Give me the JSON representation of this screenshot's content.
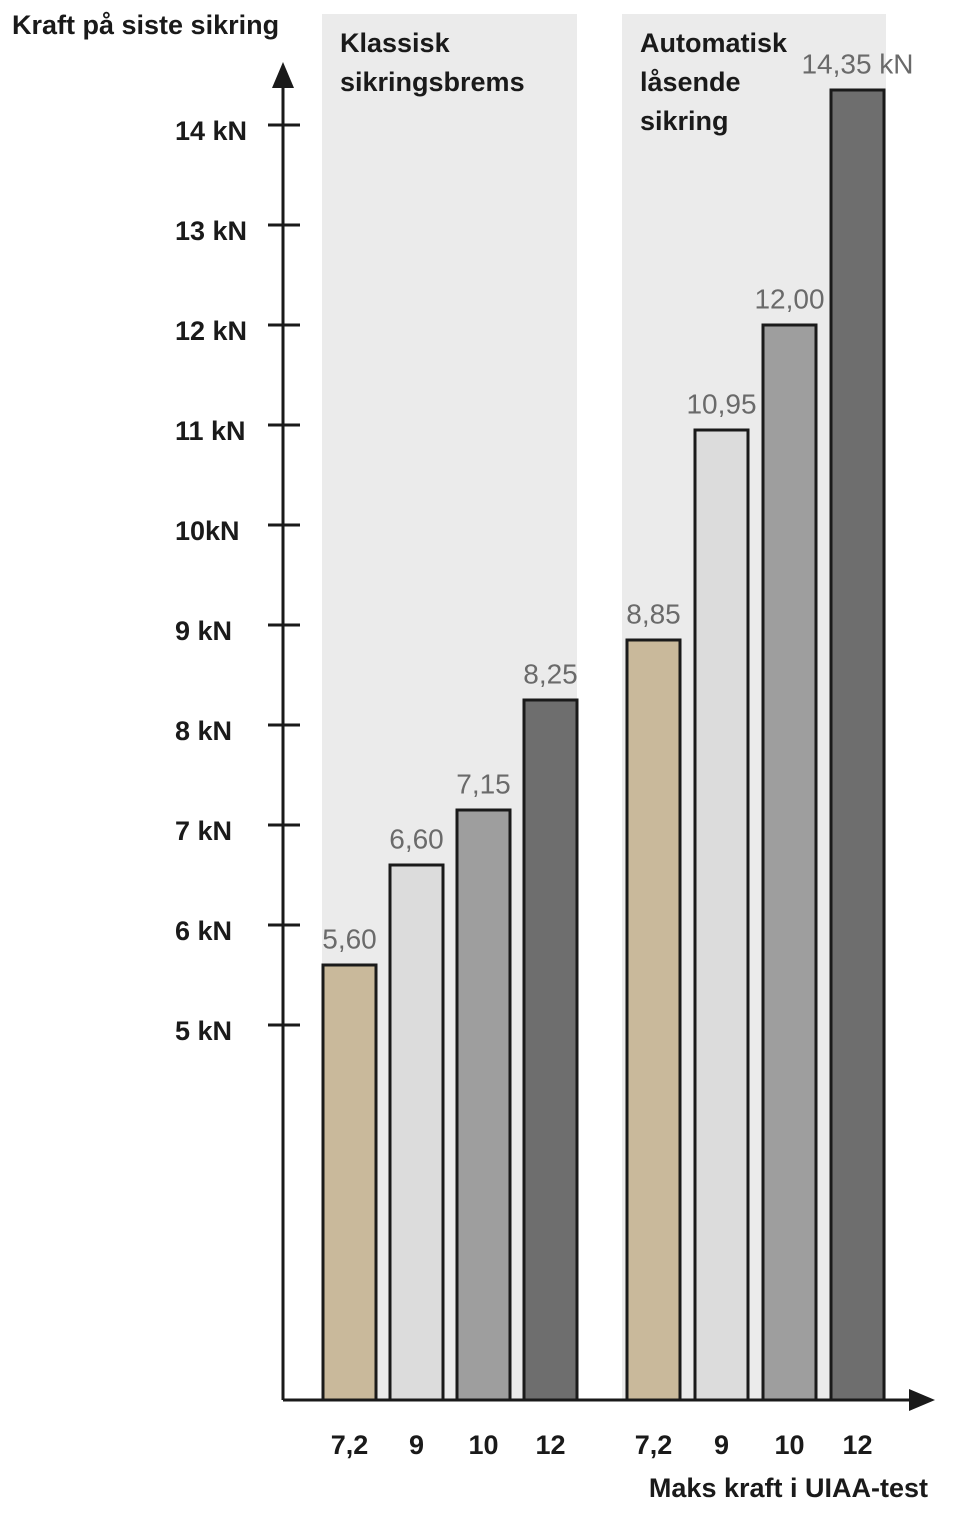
{
  "chart_data": {
    "type": "bar",
    "y_label": "Kraft på siste sikring",
    "x_label": "Maks kraft i UIAA-test",
    "colors": [
      "#c9b99b",
      "#dcdcdc",
      "#9e9e9e",
      "#6e6e6e"
    ],
    "groups": [
      {
        "name_lines": [
          "Klassisk",
          "sikringsbrems"
        ],
        "categories": [
          "7,2",
          "9",
          "10",
          "12"
        ],
        "values": [
          5.6,
          6.6,
          7.15,
          8.25
        ],
        "value_labels": [
          "5,60",
          "6,60",
          "7,15",
          "8,25"
        ]
      },
      {
        "name_lines": [
          "Automatisk",
          "låsende",
          "sikring"
        ],
        "categories": [
          "7,2",
          "9",
          "10",
          "12"
        ],
        "values": [
          8.85,
          10.95,
          12.0,
          14.35
        ],
        "value_labels": [
          "8,85",
          "10,95",
          "12,00",
          "14,35 kN"
        ]
      }
    ],
    "ylim": [
      1.25,
      14.6
    ],
    "yticks": [
      {
        "value": 5,
        "label": "5 kN"
      },
      {
        "value": 6,
        "label": "6 kN"
      },
      {
        "value": 7,
        "label": "7 kN"
      },
      {
        "value": 8,
        "label": "8 kN"
      },
      {
        "value": 9,
        "label": "9 kN"
      },
      {
        "value": 10,
        "label": "10kN"
      },
      {
        "value": 11,
        "label": "11 kN"
      },
      {
        "value": 12,
        "label": "12 kN"
      },
      {
        "value": 13,
        "label": "13 kN"
      },
      {
        "value": 14,
        "label": "14 kN"
      }
    ]
  }
}
